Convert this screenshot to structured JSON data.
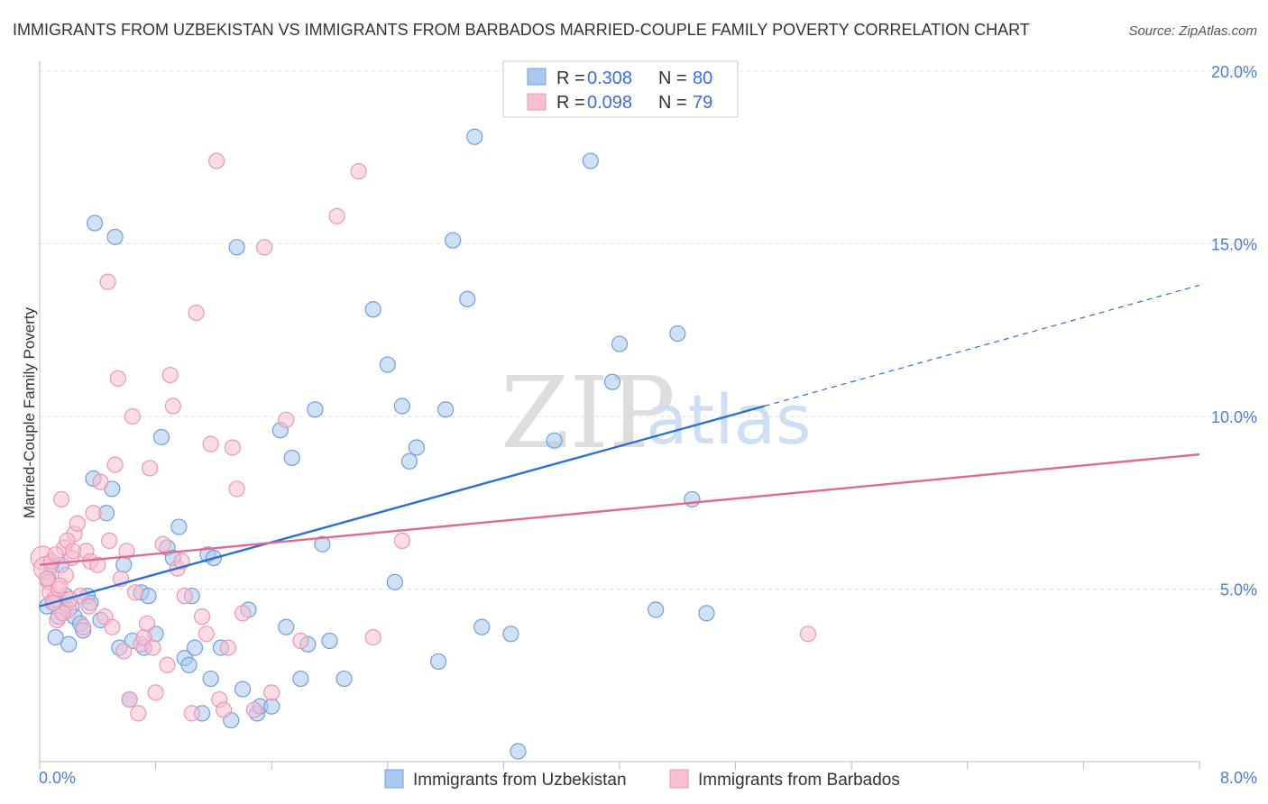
{
  "chart_data": {
    "type": "scatter",
    "title": "IMMIGRANTS FROM UZBEKISTAN VS IMMIGRANTS FROM BARBADOS MARRIED-COUPLE FAMILY POVERTY CORRELATION CHART",
    "source": "Source: ZipAtlas.com",
    "ylabel": "Married-Couple Family Poverty",
    "xlabel": "",
    "xlim": [
      0,
      8
    ],
    "ylim": [
      0,
      20
    ],
    "x_tick_labels": [
      "0.0%",
      "8.0%"
    ],
    "y_ticks": [
      5,
      10,
      15,
      20
    ],
    "y_tick_labels": [
      "5.0%",
      "10.0%",
      "15.0%",
      "20.0%"
    ],
    "grid": true,
    "legend_position": "top-center",
    "watermark": {
      "zip": "ZIP",
      "atlas": "atlas"
    },
    "colors": {
      "uzbekistan_fill": "#aac8ee",
      "uzbekistan_stroke": "#6f9fe0",
      "uzbekistan_line": "#2c6fcf",
      "barbados_fill": "#f7bfd0",
      "barbados_stroke": "#ec97b3",
      "barbados_line": "#e06895",
      "grid": "#dddddd",
      "axis": "#bbbbbb"
    },
    "series": [
      {
        "name": "Immigrants from Uzbekistan",
        "key": "uzbekistan",
        "r_label": "R =",
        "r_value": "0.308",
        "n_label": "N =",
        "n_value": "80",
        "trend": {
          "x1": 0.0,
          "y1": 4.5,
          "x2": 5.0,
          "y2": 10.3,
          "dash_x2": 8.0,
          "dash_y2": 13.8
        },
        "points": [
          [
            0.05,
            4.5
          ],
          [
            0.06,
            5.3
          ],
          [
            0.08,
            5.7
          ],
          [
            0.1,
            4.6
          ],
          [
            0.11,
            3.6
          ],
          [
            0.13,
            4.2
          ],
          [
            0.15,
            5.7
          ],
          [
            0.18,
            4.8
          ],
          [
            0.2,
            3.4
          ],
          [
            0.22,
            4.5
          ],
          [
            0.24,
            4.2
          ],
          [
            0.28,
            4.0
          ],
          [
            0.3,
            3.8
          ],
          [
            0.33,
            4.8
          ],
          [
            0.35,
            4.6
          ],
          [
            0.37,
            8.2
          ],
          [
            0.38,
            15.6
          ],
          [
            0.42,
            4.1
          ],
          [
            0.46,
            7.2
          ],
          [
            0.5,
            7.9
          ],
          [
            0.52,
            15.2
          ],
          [
            0.55,
            3.3
          ],
          [
            0.58,
            5.7
          ],
          [
            0.62,
            1.8
          ],
          [
            0.64,
            3.5
          ],
          [
            0.7,
            4.9
          ],
          [
            0.72,
            3.3
          ],
          [
            0.75,
            4.8
          ],
          [
            0.8,
            3.7
          ],
          [
            0.84,
            9.4
          ],
          [
            0.88,
            6.2
          ],
          [
            0.92,
            5.9
          ],
          [
            0.96,
            6.8
          ],
          [
            1.0,
            3.0
          ],
          [
            1.03,
            2.8
          ],
          [
            1.05,
            4.8
          ],
          [
            1.07,
            3.3
          ],
          [
            1.12,
            1.4
          ],
          [
            1.16,
            6.0
          ],
          [
            1.18,
            2.4
          ],
          [
            1.2,
            5.9
          ],
          [
            1.25,
            3.3
          ],
          [
            1.32,
            1.2
          ],
          [
            1.36,
            14.9
          ],
          [
            1.4,
            2.1
          ],
          [
            1.44,
            4.4
          ],
          [
            1.5,
            1.4
          ],
          [
            1.52,
            1.6
          ],
          [
            1.6,
            1.6
          ],
          [
            1.66,
            9.6
          ],
          [
            1.7,
            3.9
          ],
          [
            1.74,
            8.8
          ],
          [
            1.8,
            2.4
          ],
          [
            1.85,
            3.4
          ],
          [
            1.9,
            10.2
          ],
          [
            1.95,
            6.3
          ],
          [
            2.0,
            3.5
          ],
          [
            2.1,
            2.4
          ],
          [
            2.3,
            13.1
          ],
          [
            2.4,
            11.5
          ],
          [
            2.45,
            5.2
          ],
          [
            2.5,
            10.3
          ],
          [
            2.55,
            8.7
          ],
          [
            2.6,
            9.1
          ],
          [
            2.75,
            2.9
          ],
          [
            2.8,
            10.2
          ],
          [
            2.85,
            15.1
          ],
          [
            2.95,
            13.4
          ],
          [
            3.0,
            18.1
          ],
          [
            3.05,
            3.9
          ],
          [
            3.25,
            3.7
          ],
          [
            3.3,
            0.3
          ],
          [
            3.55,
            9.3
          ],
          [
            3.8,
            17.4
          ],
          [
            3.95,
            11.0
          ],
          [
            4.0,
            12.1
          ],
          [
            4.25,
            4.4
          ],
          [
            4.4,
            12.4
          ],
          [
            4.5,
            7.6
          ],
          [
            4.6,
            4.3
          ]
        ]
      },
      {
        "name": "Immigrants from Barbados",
        "key": "barbados",
        "r_label": "R =",
        "r_value": "0.098",
        "n_label": "N =",
        "n_value": "79",
        "trend": {
          "x1": 0.0,
          "y1": 5.7,
          "x2": 8.0,
          "y2": 8.9
        },
        "points": [
          [
            0.02,
            5.9
          ],
          [
            0.04,
            5.6
          ],
          [
            0.06,
            5.2
          ],
          [
            0.07,
            4.9
          ],
          [
            0.08,
            5.8
          ],
          [
            0.1,
            4.7
          ],
          [
            0.12,
            4.1
          ],
          [
            0.13,
            5.0
          ],
          [
            0.15,
            7.6
          ],
          [
            0.17,
            6.2
          ],
          [
            0.18,
            5.4
          ],
          [
            0.2,
            4.4
          ],
          [
            0.22,
            5.9
          ],
          [
            0.24,
            6.6
          ],
          [
            0.26,
            6.9
          ],
          [
            0.28,
            4.8
          ],
          [
            0.3,
            3.9
          ],
          [
            0.32,
            6.1
          ],
          [
            0.34,
            4.5
          ],
          [
            0.35,
            5.8
          ],
          [
            0.37,
            7.2
          ],
          [
            0.4,
            5.7
          ],
          [
            0.42,
            8.1
          ],
          [
            0.45,
            4.2
          ],
          [
            0.47,
            13.9
          ],
          [
            0.48,
            6.4
          ],
          [
            0.5,
            3.9
          ],
          [
            0.52,
            8.6
          ],
          [
            0.54,
            11.1
          ],
          [
            0.56,
            5.3
          ],
          [
            0.58,
            3.2
          ],
          [
            0.6,
            6.1
          ],
          [
            0.62,
            1.8
          ],
          [
            0.64,
            10.0
          ],
          [
            0.66,
            4.9
          ],
          [
            0.68,
            1.4
          ],
          [
            0.7,
            3.4
          ],
          [
            0.72,
            3.6
          ],
          [
            0.74,
            4.0
          ],
          [
            0.76,
            8.5
          ],
          [
            0.78,
            3.3
          ],
          [
            0.8,
            2.0
          ],
          [
            0.85,
            6.3
          ],
          [
            0.88,
            2.8
          ],
          [
            0.9,
            11.2
          ],
          [
            0.92,
            10.3
          ],
          [
            0.95,
            5.6
          ],
          [
            0.98,
            5.8
          ],
          [
            1.0,
            4.8
          ],
          [
            1.05,
            1.4
          ],
          [
            1.08,
            13.0
          ],
          [
            1.12,
            4.2
          ],
          [
            1.15,
            3.7
          ],
          [
            1.18,
            9.2
          ],
          [
            1.22,
            17.4
          ],
          [
            1.24,
            1.8
          ],
          [
            1.27,
            1.5
          ],
          [
            1.3,
            3.3
          ],
          [
            1.33,
            9.1
          ],
          [
            1.36,
            7.9
          ],
          [
            1.4,
            4.3
          ],
          [
            1.48,
            1.5
          ],
          [
            1.55,
            14.9
          ],
          [
            1.6,
            2.0
          ],
          [
            1.7,
            9.9
          ],
          [
            1.8,
            3.5
          ],
          [
            2.05,
            15.8
          ],
          [
            2.2,
            17.1
          ],
          [
            2.3,
            3.6
          ],
          [
            2.5,
            6.4
          ],
          [
            5.3,
            3.7
          ],
          [
            0.05,
            5.3
          ],
          [
            0.09,
            4.6
          ],
          [
            0.11,
            6.0
          ],
          [
            0.14,
            5.1
          ],
          [
            0.16,
            4.3
          ],
          [
            0.19,
            6.4
          ],
          [
            0.21,
            4.7
          ],
          [
            0.23,
            6.1
          ]
        ]
      }
    ]
  }
}
